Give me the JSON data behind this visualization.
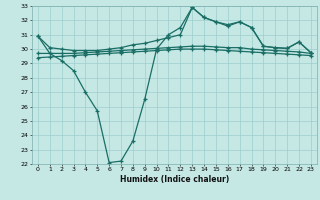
{
  "xlabel": "Humidex (Indice chaleur)",
  "x": [
    0,
    1,
    2,
    3,
    4,
    5,
    6,
    7,
    8,
    9,
    10,
    11,
    12,
    13,
    14,
    15,
    16,
    17,
    18,
    19,
    20,
    21,
    22,
    23
  ],
  "line_dip": [
    30.9,
    29.7,
    29.2,
    28.5,
    27.0,
    25.7,
    22.1,
    22.2,
    23.6,
    26.5,
    30.0,
    31.0,
    31.5,
    32.9,
    32.2,
    31.9,
    31.6,
    31.9,
    31.5,
    30.2,
    30.1,
    30.05,
    30.5,
    29.75
  ],
  "line_top": [
    30.9,
    30.1,
    30.0,
    29.9,
    29.9,
    29.9,
    30.0,
    30.1,
    30.3,
    30.4,
    30.6,
    30.8,
    31.0,
    32.9,
    32.2,
    31.9,
    31.7,
    31.9,
    31.5,
    30.2,
    30.1,
    30.05,
    30.5,
    29.75
  ],
  "line_mid1": [
    29.7,
    29.7,
    29.7,
    29.7,
    29.75,
    29.8,
    29.85,
    29.9,
    29.95,
    30.0,
    30.05,
    30.1,
    30.15,
    30.2,
    30.2,
    30.15,
    30.1,
    30.1,
    30.0,
    29.95,
    29.9,
    29.85,
    29.8,
    29.7
  ],
  "line_mid2": [
    29.4,
    29.45,
    29.5,
    29.55,
    29.6,
    29.65,
    29.7,
    29.75,
    29.8,
    29.85,
    29.9,
    29.95,
    30.0,
    30.0,
    30.0,
    29.95,
    29.9,
    29.85,
    29.8,
    29.75,
    29.7,
    29.65,
    29.6,
    29.55
  ],
  "line_color": "#1a6e65",
  "bg_color": "#c5e8e5",
  "grid_color": "#9ecece",
  "ylim": [
    22,
    33
  ],
  "xlim_min": -0.5,
  "xlim_max": 23.5,
  "yticks": [
    22,
    23,
    24,
    25,
    26,
    27,
    28,
    29,
    30,
    31,
    32,
    33
  ],
  "xticks": [
    0,
    1,
    2,
    3,
    4,
    5,
    6,
    7,
    8,
    9,
    10,
    11,
    12,
    13,
    14,
    15,
    16,
    17,
    18,
    19,
    20,
    21,
    22,
    23
  ]
}
